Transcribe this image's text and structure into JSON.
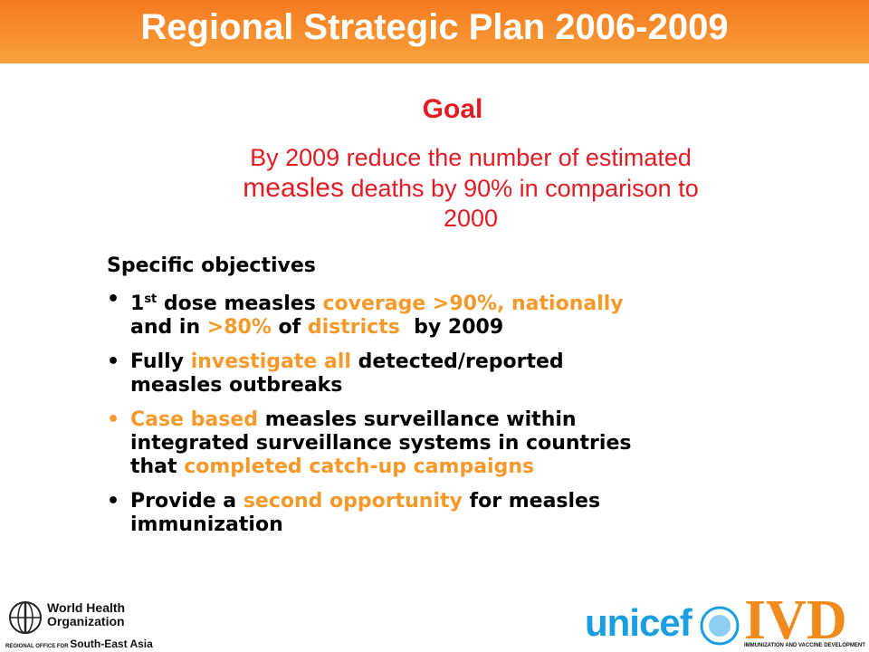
{
  "header": {
    "title": "Regional Strategic Plan 2006-2009"
  },
  "goal": {
    "heading": "Goal",
    "lines": [
      [
        {
          "text": "By 2009 reduce the number of estimated",
          "size": "normal"
        }
      ],
      [
        {
          "text": "measles",
          "size": "large"
        },
        {
          "text": " deaths by 90% in comparison to",
          "size": "normal"
        }
      ],
      [
        {
          "text": "2000",
          "size": "normal"
        }
      ]
    ]
  },
  "objectives": {
    "heading": "Specific objectives",
    "items": [
      {
        "bullet_color": "#000000",
        "lines": [
          [
            {
              "text": "1",
              "color": "#000000"
            },
            {
              "text": "st",
              "color": "#000000",
              "style": "sup"
            },
            {
              "text": " dose measles ",
              "color": "#000000"
            },
            {
              "text": "coverage >90%, nationally",
              "color": "#f59a2a"
            }
          ],
          [
            {
              "text": "and in ",
              "color": "#000000"
            },
            {
              "text": ">80%",
              "color": "#f59a2a"
            },
            {
              "text": " of ",
              "color": "#000000"
            },
            {
              "text": "districts",
              "color": "#f59a2a"
            },
            {
              "text": "  by 2009",
              "color": "#000000"
            }
          ]
        ]
      },
      {
        "bullet_color": "#000000",
        "lines": [
          [
            {
              "text": "Fully ",
              "color": "#000000"
            },
            {
              "text": "investigate all",
              "color": "#f59a2a"
            },
            {
              "text": " detected/reported",
              "color": "#000000"
            }
          ],
          [
            {
              "text": "measles outbreaks",
              "color": "#000000"
            }
          ]
        ]
      },
      {
        "bullet_color": "#f59a2a",
        "lines": [
          [
            {
              "text": "Case based",
              "color": "#f59a2a"
            },
            {
              "text": " measles surveillance within",
              "color": "#000000"
            }
          ],
          [
            {
              "text": "integrated surveillance systems in countries",
              "color": "#000000"
            }
          ],
          [
            {
              "text": "that ",
              "color": "#000000"
            },
            {
              "text": "completed catch-up campaigns",
              "color": "#f59a2a"
            }
          ]
        ]
      },
      {
        "bullet_color": "#000000",
        "lines": [
          [
            {
              "text": "Provide a ",
              "color": "#000000"
            },
            {
              "text": "second opportunity",
              "color": "#f59a2a"
            },
            {
              "text": " for measles",
              "color": "#000000"
            }
          ],
          [
            {
              "text": "immunization",
              "color": "#000000"
            }
          ]
        ]
      }
    ]
  },
  "footer": {
    "who": {
      "line1": "World Health",
      "line2": "Organization",
      "office_prefix": "REGIONAL OFFICE FOR",
      "office": "South-East Asia"
    },
    "unicef": "unicef",
    "ivd": {
      "name": "IVD",
      "caption": "IMMUNIZATION AND VACCINE DEVELOPMENT"
    }
  }
}
